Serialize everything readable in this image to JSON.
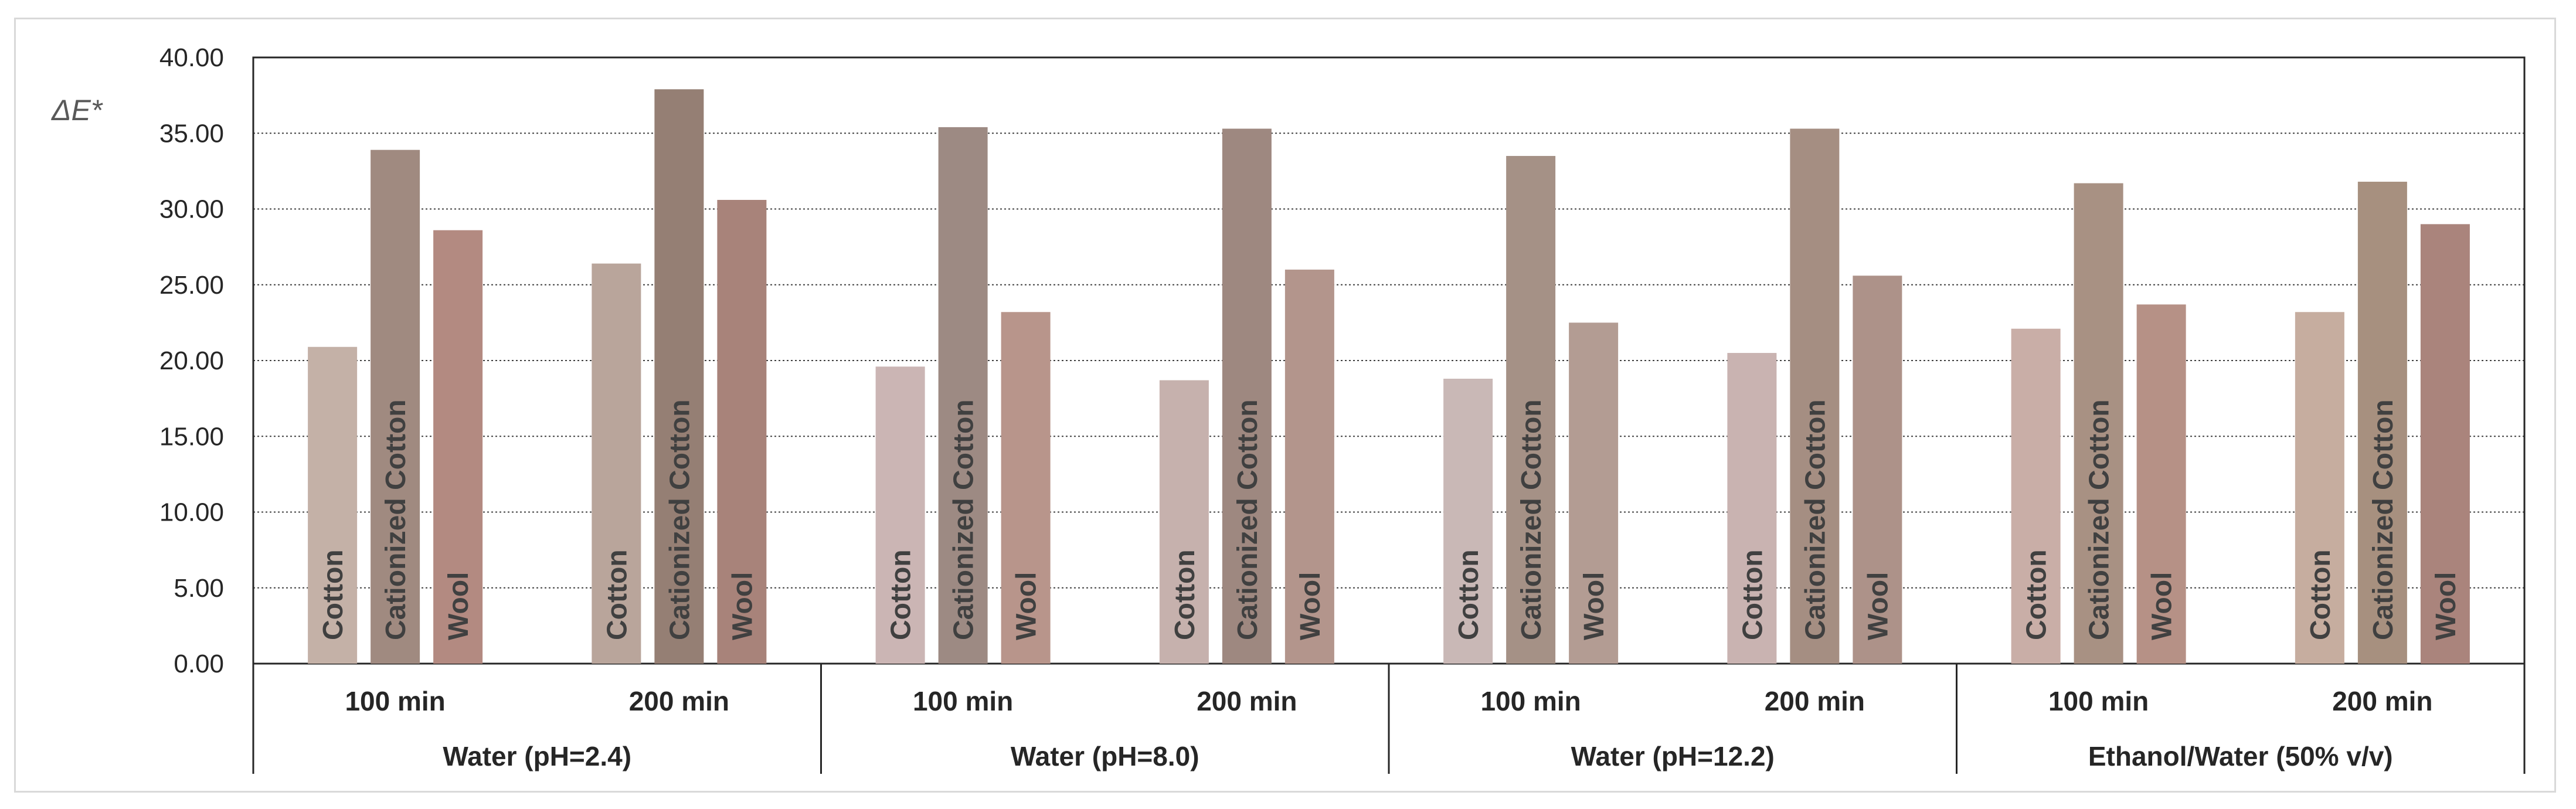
{
  "chart_data": {
    "type": "bar",
    "title": "",
    "xlabel": "",
    "ylabel": "ΔE*",
    "ylim": [
      0,
      40
    ],
    "yticks": [
      "0.00",
      "5.00",
      "10.00",
      "15.00",
      "20.00",
      "25.00",
      "30.00",
      "35.00",
      "40.00"
    ],
    "grid": true,
    "groups": [
      {
        "name": "Water (pH=2.4)",
        "times": [
          {
            "label": "100 min",
            "values": [
              20.9,
              33.9,
              28.6
            ]
          },
          {
            "label": "200 min",
            "values": [
              26.4,
              37.9,
              30.6
            ]
          }
        ]
      },
      {
        "name": "Water (pH=8.0)",
        "times": [
          {
            "label": "100 min",
            "values": [
              19.6,
              35.4,
              23.2
            ]
          },
          {
            "label": "200 min",
            "values": [
              18.7,
              35.3,
              26.0
            ]
          }
        ]
      },
      {
        "name": "Water (pH=12.2)",
        "times": [
          {
            "label": "100 min",
            "values": [
              18.8,
              33.5,
              22.5
            ]
          },
          {
            "label": "200 min",
            "values": [
              20.5,
              35.3,
              25.6
            ]
          }
        ]
      },
      {
        "name": "Ethanol/Water (50% v/v)",
        "times": [
          {
            "label": "100 min",
            "values": [
              22.1,
              31.7,
              23.7
            ]
          },
          {
            "label": "200 min",
            "values": [
              23.2,
              31.8,
              29.0
            ]
          }
        ]
      }
    ],
    "series": [
      {
        "name": "Cotton"
      },
      {
        "name": "Cationized Cotton"
      },
      {
        "name": "Wool"
      }
    ],
    "bar_colors": [
      [
        "#c4b1a7",
        "#a08a80",
        "#b38a81"
      ],
      [
        "#b9a59b",
        "#957f74",
        "#a8837a"
      ],
      [
        "#cbb5b4",
        "#9d8a83",
        "#b8958b"
      ],
      [
        "#c6b1ad",
        "#9e8880",
        "#b3958c"
      ],
      [
        "#c9b8b6",
        "#a59186",
        "#b39c93"
      ],
      [
        "#c9b3b1",
        "#a58e82",
        "#ad9289"
      ],
      [
        "#c9aea7",
        "#a89183",
        "#b69186"
      ],
      [
        "#c6ad9f",
        "#a7907f",
        "#aa847c"
      ]
    ]
  }
}
